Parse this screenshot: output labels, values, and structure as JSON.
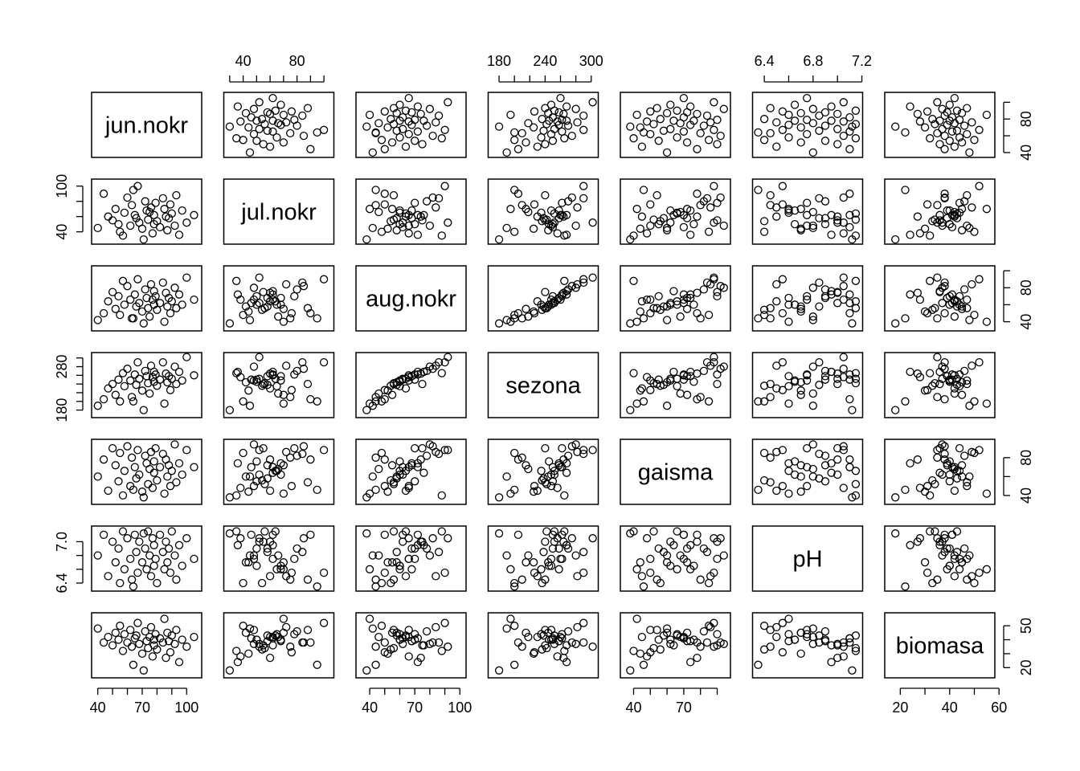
{
  "chart_data": {
    "type": "scatter",
    "kind": "scatterplot-matrix",
    "title": "",
    "variables": [
      "jun.nokr",
      "jul.nokr",
      "aug.nokr",
      "sezona",
      "gaisma",
      "pH",
      "biomasa"
    ],
    "ranges": {
      "jun.nokr": [
        38,
        108
      ],
      "jul.nokr": [
        28,
        105
      ],
      "aug.nokr": [
        33,
        102
      ],
      "sezona": [
        170,
        305
      ],
      "gaisma": [
        34,
        96
      ],
      "pH": [
        6.33,
        7.18
      ],
      "biomasa": [
        15,
        57
      ]
    },
    "axes": [
      {
        "side": "top",
        "column": 1,
        "ticks": [
          {
            "value": 30,
            "label": ""
          },
          {
            "value": 40,
            "label": "40"
          },
          {
            "value": 50,
            "label": ""
          },
          {
            "value": 60,
            "label": ""
          },
          {
            "value": 70,
            "label": ""
          },
          {
            "value": 80,
            "label": "80"
          },
          {
            "value": 90,
            "label": ""
          },
          {
            "value": 100,
            "label": ""
          }
        ]
      },
      {
        "side": "top",
        "column": 3,
        "ticks": [
          {
            "value": 180,
            "label": "180"
          },
          {
            "value": 200,
            "label": ""
          },
          {
            "value": 220,
            "label": ""
          },
          {
            "value": 240,
            "label": "240"
          },
          {
            "value": 260,
            "label": ""
          },
          {
            "value": 280,
            "label": ""
          },
          {
            "value": 300,
            "label": "300"
          }
        ]
      },
      {
        "side": "top",
        "column": 5,
        "ticks": [
          {
            "value": 6.4,
            "label": "6.4"
          },
          {
            "value": 6.6,
            "label": ""
          },
          {
            "value": 6.8,
            "label": "6.8"
          },
          {
            "value": 7.0,
            "label": ""
          },
          {
            "value": 7.2,
            "label": "7.2"
          }
        ]
      },
      {
        "side": "bottom",
        "column": 0,
        "ticks": [
          {
            "value": 40,
            "label": "40"
          },
          {
            "value": 50,
            "label": ""
          },
          {
            "value": 60,
            "label": ""
          },
          {
            "value": 70,
            "label": "70"
          },
          {
            "value": 80,
            "label": ""
          },
          {
            "value": 90,
            "label": ""
          },
          {
            "value": 100,
            "label": "100"
          }
        ]
      },
      {
        "side": "bottom",
        "column": 2,
        "ticks": [
          {
            "value": 40,
            "label": "40"
          },
          {
            "value": 50,
            "label": ""
          },
          {
            "value": 60,
            "label": ""
          },
          {
            "value": 70,
            "label": "70"
          },
          {
            "value": 80,
            "label": ""
          },
          {
            "value": 90,
            "label": ""
          },
          {
            "value": 100,
            "label": "100"
          }
        ]
      },
      {
        "side": "bottom",
        "column": 4,
        "ticks": [
          {
            "value": 40,
            "label": "40"
          },
          {
            "value": 50,
            "label": ""
          },
          {
            "value": 60,
            "label": ""
          },
          {
            "value": 70,
            "label": "70"
          },
          {
            "value": 80,
            "label": ""
          },
          {
            "value": 90,
            "label": ""
          }
        ]
      },
      {
        "side": "bottom",
        "column": 6,
        "ticks": [
          {
            "value": 20,
            "label": "20"
          },
          {
            "value": 30,
            "label": ""
          },
          {
            "value": 40,
            "label": "40"
          },
          {
            "value": 50,
            "label": ""
          },
          {
            "value": 60,
            "label": "60"
          }
        ]
      },
      {
        "side": "left",
        "row": 1,
        "ticks": [
          {
            "value": 40,
            "label": "40"
          },
          {
            "value": 60,
            "label": ""
          },
          {
            "value": 80,
            "label": ""
          },
          {
            "value": 100,
            "label": "100"
          }
        ]
      },
      {
        "side": "left",
        "row": 3,
        "ticks": [
          {
            "value": 180,
            "label": "180"
          },
          {
            "value": 200,
            "label": ""
          },
          {
            "value": 220,
            "label": ""
          },
          {
            "value": 240,
            "label": ""
          },
          {
            "value": 260,
            "label": ""
          },
          {
            "value": 280,
            "label": "280"
          },
          {
            "value": 300,
            "label": ""
          }
        ]
      },
      {
        "side": "left",
        "row": 5,
        "ticks": [
          {
            "value": 6.4,
            "label": "6.4"
          },
          {
            "value": 6.6,
            "label": ""
          },
          {
            "value": 6.8,
            "label": ""
          },
          {
            "value": 7.0,
            "label": "7.0"
          }
        ]
      },
      {
        "side": "right",
        "row": 0,
        "ticks": [
          {
            "value": 40,
            "label": "40"
          },
          {
            "value": 60,
            "label": ""
          },
          {
            "value": 80,
            "label": "80"
          },
          {
            "value": 100,
            "label": ""
          }
        ]
      },
      {
        "side": "right",
        "row": 2,
        "ticks": [
          {
            "value": 40,
            "label": "40"
          },
          {
            "value": 60,
            "label": ""
          },
          {
            "value": 80,
            "label": "80"
          },
          {
            "value": 100,
            "label": ""
          }
        ]
      },
      {
        "side": "right",
        "row": 4,
        "ticks": [
          {
            "value": 40,
            "label": "40"
          },
          {
            "value": 60,
            "label": ""
          },
          {
            "value": 80,
            "label": "80"
          }
        ]
      },
      {
        "side": "right",
        "row": 6,
        "ticks": [
          {
            "value": 20,
            "label": "20"
          },
          {
            "value": 30,
            "label": ""
          },
          {
            "value": 40,
            "label": ""
          },
          {
            "value": 50,
            "label": "50"
          }
        ]
      }
    ],
    "observations": {
      "jun.nokr": [
        40,
        44,
        47,
        50,
        52,
        54,
        55,
        57,
        58,
        60,
        62,
        63,
        65,
        66,
        67,
        68,
        70,
        72,
        73,
        74,
        75,
        76,
        77,
        78,
        78,
        79,
        80,
        82,
        84,
        85,
        86,
        87,
        88,
        89,
        90,
        92,
        93,
        95,
        97,
        100,
        105,
        64,
        71
      ],
      "jul.nokr": [
        45,
        90,
        60,
        55,
        70,
        50,
        40,
        35,
        65,
        85,
        48,
        75,
        62,
        58,
        100,
        52,
        44,
        80,
        68,
        56,
        66,
        72,
        38,
        50,
        62,
        78,
        54,
        46,
        84,
        70,
        60,
        42,
        58,
        76,
        64,
        48,
        88,
        36,
        68,
        52,
        62,
        95,
        30
      ],
      "aug.nokr": [
        42,
        50,
        64,
        75,
        55,
        70,
        48,
        88,
        60,
        82,
        66,
        44,
        72,
        58,
        90,
        62,
        52,
        78,
        68,
        56,
        46,
        84,
        66,
        60,
        76,
        70,
        54,
        62,
        86,
        40,
        74,
        58,
        68,
        50,
        64,
        80,
        56,
        72,
        60,
        92,
        66,
        44,
        38
      ],
      "sezona": [
        190,
        205,
        230,
        240,
        215,
        250,
        200,
        265,
        235,
        275,
        248,
        210,
        262,
        238,
        290,
        252,
        225,
        270,
        258,
        242,
        218,
        282,
        256,
        245,
        268,
        262,
        236,
        250,
        290,
        195,
        264,
        244,
        258,
        226,
        252,
        280,
        240,
        268,
        248,
        302,
        260,
        200,
        180
      ],
      "gaisma": [
        60,
        78,
        45,
        90,
        72,
        55,
        85,
        40,
        66,
        92,
        50,
        80,
        70,
        58,
        88,
        62,
        44,
        82,
        74,
        52,
        68,
        86,
        48,
        76,
        64,
        90,
        56,
        70,
        84,
        42,
        78,
        60,
        72,
        50,
        66,
        94,
        54,
        74,
        62,
        88,
        70,
        46,
        38
      ],
      "pH": [
        6.8,
        7.1,
        6.5,
        7.0,
        6.7,
        6.9,
        6.4,
        7.15,
        6.6,
        7.05,
        6.75,
        6.45,
        7.1,
        6.85,
        6.55,
        7.0,
        6.7,
        6.9,
        6.6,
        7.15,
        6.8,
        6.5,
        7.05,
        6.65,
        6.95,
        6.75,
        6.4,
        7.1,
        6.85,
        6.6,
        7.0,
        6.7,
        6.9,
        6.55,
        7.15,
        6.8,
        6.45,
        6.95,
        6.65,
        7.05,
        6.75,
        6.35,
        7.12
      ],
      "biomasa": [
        48,
        38,
        42,
        36,
        45,
        40,
        50,
        32,
        44,
        38,
        47,
        35,
        41,
        43,
        52,
        37,
        30,
        46,
        39,
        34,
        42,
        49,
        28,
        40,
        36,
        44,
        33,
        41,
        38,
        55,
        27,
        45,
        39,
        31,
        43,
        37,
        47,
        24,
        40,
        35,
        42,
        22,
        18
      ]
    }
  }
}
